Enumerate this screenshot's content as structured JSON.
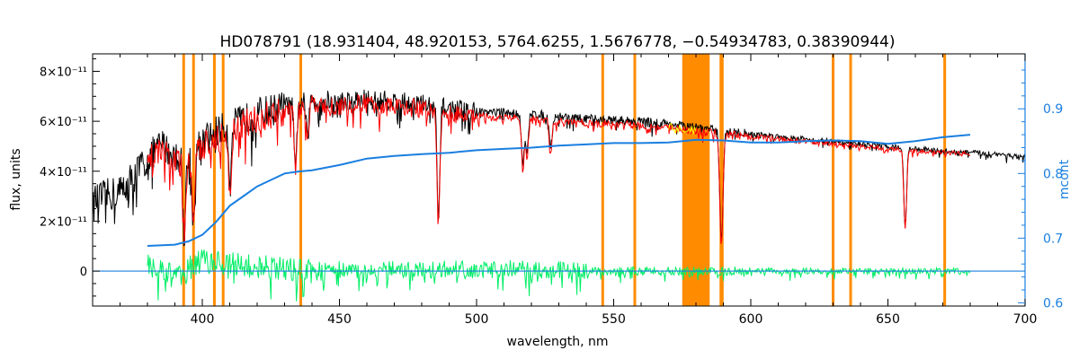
{
  "chart_data": {
    "type": "line",
    "title": "HD078791    (18.931404, 48.920153, 5764.6255, 1.5676778, −0.54934783, 0.38390944)",
    "xlabel": "wavelength, nm",
    "ylabel": "flux, units",
    "y2label": "mcont",
    "xlim": [
      360,
      700
    ],
    "ylim": [
      -1.4e-11,
      8.7e-11
    ],
    "y2lim": [
      0.595,
      0.985
    ],
    "x_ticks": [
      400,
      450,
      500,
      550,
      600,
      650,
      700
    ],
    "y_ticks": [
      {
        "value": 0,
        "label": "0"
      },
      {
        "value": 2e-11,
        "label": "2×10⁻¹¹"
      },
      {
        "value": 4e-11,
        "label": "4×10⁻¹¹"
      },
      {
        "value": 6e-11,
        "label": "6×10⁻¹¹"
      },
      {
        "value": 8e-11,
        "label": "8×10⁻¹¹"
      }
    ],
    "y2_ticks": [
      {
        "value": 0.6,
        "label": "0.6"
      },
      {
        "value": 0.7,
        "label": "0.7"
      },
      {
        "value": 0.8,
        "label": "0.8"
      },
      {
        "value": 0.9,
        "label": "0.9"
      }
    ],
    "colors": {
      "observed": "#000000",
      "model": "#ff0000",
      "residual": "#00ee66",
      "continuum": "#1a7fe0",
      "masks": "#ff8c00",
      "highlight": "#ffff00"
    },
    "series": [
      {
        "key": "observed",
        "x": [
          360,
          370,
          375,
          380,
          385,
          390,
          395,
          400,
          405,
          410,
          420,
          430,
          440,
          450,
          460,
          470,
          480,
          490,
          500,
          510,
          520,
          530,
          540,
          550,
          560,
          570,
          580,
          590,
          600,
          610,
          620,
          630,
          640,
          650,
          660,
          670,
          680,
          690,
          700
        ],
        "y": [
          2.8e-11,
          3.2e-11,
          3.8e-11,
          4.5e-11,
          5.1e-11,
          4.6e-11,
          4.5e-11,
          5.2e-11,
          5.6e-11,
          5.8e-11,
          6.3e-11,
          6.6e-11,
          6.9e-11,
          6.8e-11,
          6.9e-11,
          6.8e-11,
          6.7e-11,
          6.5e-11,
          6.4e-11,
          6.35e-11,
          6.3e-11,
          6.2e-11,
          6.1e-11,
          6.05e-11,
          6e-11,
          5.9e-11,
          5.75e-11,
          5.6e-11,
          5.5e-11,
          5.4e-11,
          5.3e-11,
          5.2e-11,
          5.1e-11,
          5e-11,
          4.9e-11,
          4.8e-11,
          4.75e-11,
          4.7e-11,
          4.55e-11
        ]
      },
      {
        "key": "model",
        "x": [
          380,
          385,
          390,
          395,
          400,
          405,
          410,
          420,
          430,
          440,
          450,
          460,
          470,
          480,
          490,
          500,
          510,
          520,
          530,
          540,
          550,
          560,
          570,
          580,
          590,
          600,
          610,
          620,
          630,
          640,
          650,
          660,
          670,
          680
        ],
        "y": [
          4.3e-11,
          4.9e-11,
          4.4e-11,
          4.3e-11,
          5e-11,
          5.4e-11,
          5.6e-11,
          6.1e-11,
          6.4e-11,
          6.7e-11,
          6.6e-11,
          6.7e-11,
          6.6e-11,
          6.5e-11,
          6.3e-11,
          6.2e-11,
          6.15e-11,
          6.1e-11,
          6e-11,
          5.95e-11,
          5.9e-11,
          5.85e-11,
          5.75e-11,
          5.6e-11,
          5.5e-11,
          5.4e-11,
          5.3e-11,
          5.2e-11,
          5.1e-11,
          5e-11,
          4.9e-11,
          4.8e-11,
          4.75e-11,
          4.7e-11
        ]
      },
      {
        "key": "residual",
        "x": [
          380,
          390,
          400,
          410,
          420,
          430,
          440,
          450,
          460,
          470,
          480,
          490,
          500,
          510,
          520,
          530,
          540,
          550,
          560,
          570,
          580,
          590,
          600,
          610,
          620,
          630,
          640,
          650,
          660,
          670,
          680
        ],
        "y": [
          2e-12,
          -2e-12,
          4e-12,
          3e-12,
          2e-12,
          1e-12,
          0.0,
          1e-12,
          -1e-12,
          1e-12,
          0.0,
          1e-12,
          0.0,
          1e-12,
          5e-13,
          5e-13,
          0.0,
          0.0,
          0.0,
          0.0,
          0.0,
          0.0,
          0.0,
          0.0,
          0.0,
          0.0,
          0.0,
          0.0,
          0.0,
          0.0,
          0.0
        ]
      },
      {
        "key": "continuum",
        "axis": "y2",
        "x": [
          380,
          390,
          395,
          400,
          405,
          410,
          415,
          420,
          425,
          430,
          435,
          440,
          450,
          460,
          470,
          480,
          490,
          500,
          510,
          520,
          530,
          540,
          550,
          560,
          570,
          580,
          590,
          600,
          610,
          620,
          630,
          640,
          650,
          660,
          670,
          680
        ],
        "y": [
          0.688,
          0.69,
          0.695,
          0.705,
          0.725,
          0.75,
          0.765,
          0.78,
          0.79,
          0.8,
          0.803,
          0.805,
          0.813,
          0.823,
          0.827,
          0.83,
          0.832,
          0.836,
          0.838,
          0.84,
          0.843,
          0.845,
          0.847,
          0.847,
          0.848,
          0.852,
          0.851,
          0.848,
          0.848,
          0.85,
          0.851,
          0.85,
          0.846,
          0.85,
          0.856,
          0.86
        ]
      }
    ],
    "absorption_lines": [
      {
        "x": 393.4,
        "depth": 3e-11
      },
      {
        "x": 396.8,
        "depth": 2.8e-11
      },
      {
        "x": 410.2,
        "depth": 2.2e-11
      },
      {
        "x": 434.0,
        "depth": 2.6e-11
      },
      {
        "x": 438.4,
        "depth": 1.5e-11
      },
      {
        "x": 486.1,
        "depth": 4.6e-11
      },
      {
        "x": 516.9,
        "depth": 2e-11
      },
      {
        "x": 518.4,
        "depth": 1.6e-11
      },
      {
        "x": 527.0,
        "depth": 1.3e-11
      },
      {
        "x": 589.0,
        "depth": 2.7e-11
      },
      {
        "x": 589.6,
        "depth": 2.4e-11
      },
      {
        "x": 656.3,
        "depth": 3.2e-11
      }
    ],
    "mask_lines": [
      393.2,
      396.8,
      404.4,
      407.6,
      435.9,
      546.0,
      557.7,
      589.1,
      589.6,
      630.0,
      636.4,
      670.7
    ],
    "mask_bands": [
      [
        575.0,
        585.0
      ]
    ],
    "x_range_mcont_line": [
      360,
      700
    ],
    "mcont_zero_line_y": 0
  }
}
